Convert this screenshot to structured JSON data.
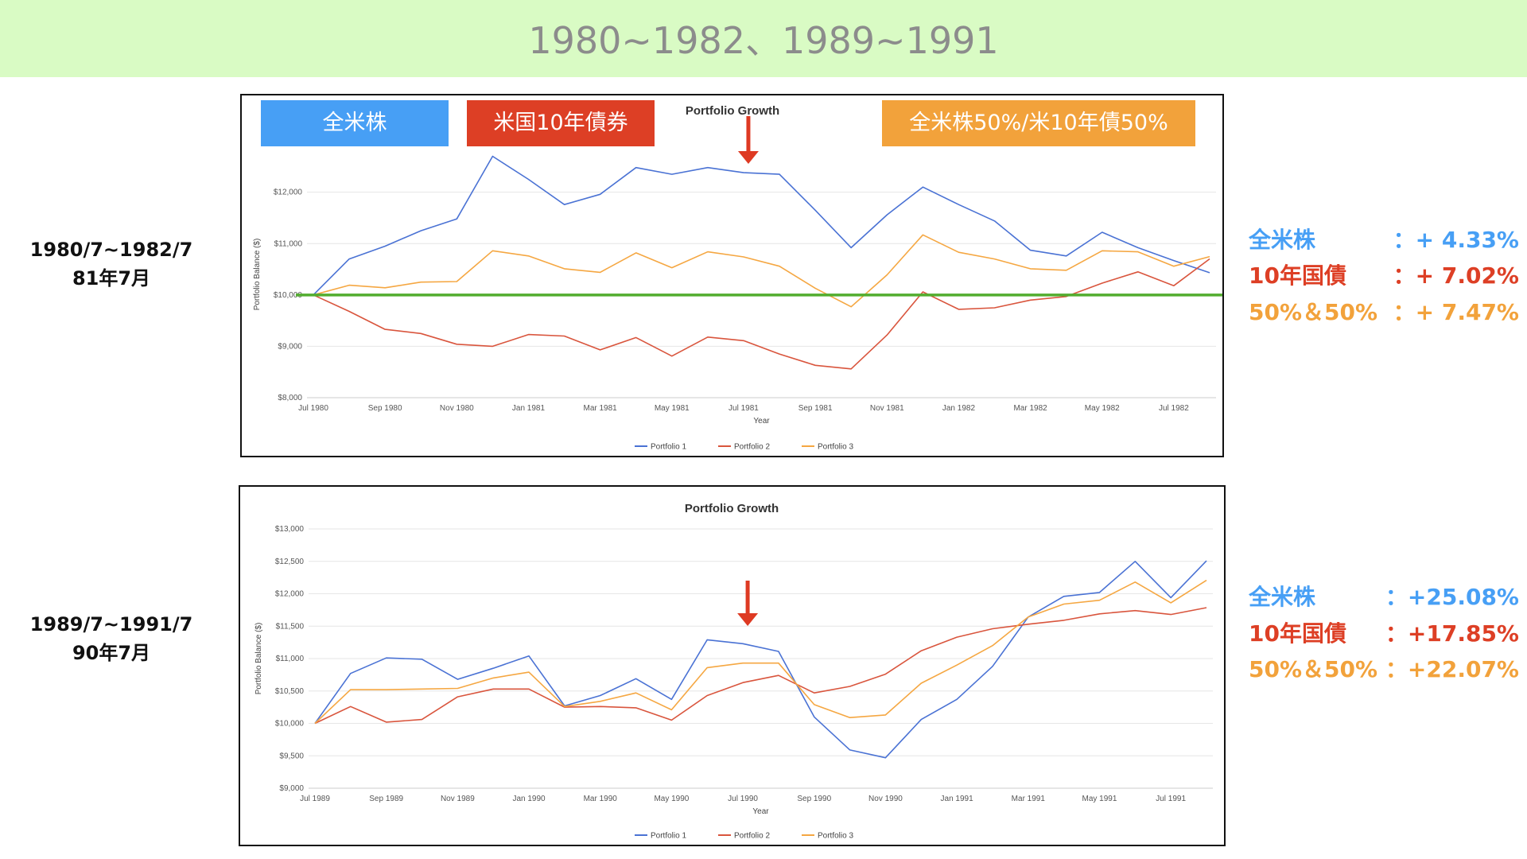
{
  "banner": {
    "title": "1980~1982、1989~1991",
    "color": "#d9fbc4"
  },
  "colors": {
    "portfolio1": "#4a72d4",
    "portfolio2": "#d9553d",
    "portfolio3": "#f5a742",
    "baseline": "#52ad2f",
    "marker": "#de3a23",
    "tag_blue": "#479ff5",
    "tag_red": "#dd3f25",
    "tag_orange": "#f2a23b"
  },
  "tags": {
    "total_us_stock": "全米株",
    "us_10y_bond": "米国10年債券",
    "mix": "全米株50%/米10年債50%"
  },
  "sections": [
    {
      "period": "1980/7~1982/7",
      "event": "81年7月",
      "results": [
        {
          "name": "全米株",
          "value": "：+ 4.33%"
        },
        {
          "name": "10年国債",
          "value": "：+ 7.02%"
        },
        {
          "name": "50%＆50%",
          "value": "：+ 7.47%"
        }
      ]
    },
    {
      "period": "1989/7~1991/7",
      "event": "90年7月",
      "results": [
        {
          "name": "全米株",
          "value": "：+25.08%"
        },
        {
          "name": "10年国債",
          "value": "：+17.85%"
        },
        {
          "name": "50%＆50%",
          "value": "：+22.07%"
        }
      ]
    }
  ],
  "chart_data": [
    {
      "type": "line",
      "title": "Portfolio Growth",
      "xlabel": "Year",
      "ylabel": "Portfolio Balance ($)",
      "ylim": [
        8000,
        12800
      ],
      "yticks": [
        "$8,000",
        "$9,000",
        "$10,000",
        "$11,000",
        "$12,000"
      ],
      "ytick_values": [
        8000,
        9000,
        10000,
        11000,
        12000
      ],
      "x": [
        "Jul 1980",
        "Aug 1980",
        "Sep 1980",
        "Oct 1980",
        "Nov 1980",
        "Dec 1980",
        "Jan 1981",
        "Feb 1981",
        "Mar 1981",
        "Apr 1981",
        "May 1981",
        "Jun 1981",
        "Jul 1981",
        "Aug 1981",
        "Sep 1981",
        "Oct 1981",
        "Nov 1981",
        "Dec 1981",
        "Jan 1982",
        "Feb 1982",
        "Mar 1982",
        "Apr 1982",
        "May 1982",
        "Jun 1982",
        "Jul 1982",
        "Aug 1982"
      ],
      "xticks": [
        "Jul 1980",
        "Sep 1980",
        "Nov 1980",
        "Jan 1981",
        "Mar 1981",
        "May 1981",
        "Jul 1981",
        "Sep 1981",
        "Nov 1981",
        "Jan 1982",
        "Mar 1982",
        "May 1982",
        "Jul 1982"
      ],
      "series": [
        {
          "name": "Portfolio 1",
          "values": [
            10000,
            10700,
            10950,
            11250,
            11480,
            12700,
            12250,
            11760,
            11960,
            12480,
            12350,
            12480,
            12380,
            12350,
            11650,
            10920,
            11560,
            12100,
            11760,
            11440,
            10870,
            10760,
            11220,
            10920,
            10670,
            10433
          ]
        },
        {
          "name": "Portfolio 2",
          "values": [
            10000,
            9680,
            9330,
            9250,
            9040,
            9000,
            9230,
            9200,
            8930,
            9170,
            8810,
            9180,
            9110,
            8850,
            8630,
            8560,
            9220,
            10060,
            9720,
            9750,
            9900,
            9970,
            10230,
            10450,
            10180,
            10702
          ]
        },
        {
          "name": "Portfolio 3",
          "values": [
            10000,
            10190,
            10140,
            10250,
            10260,
            10860,
            10760,
            10510,
            10440,
            10820,
            10530,
            10840,
            10740,
            10560,
            10130,
            9770,
            10390,
            11170,
            10830,
            10700,
            10510,
            10480,
            10860,
            10840,
            10560,
            10747
          ]
        }
      ],
      "baseline": 10000,
      "marker_x": "Jul 1981",
      "legend": "bottom"
    },
    {
      "type": "line",
      "title": "Portfolio Growth",
      "xlabel": "Year",
      "ylabel": "Portfolio Balance ($)",
      "ylim": [
        9000,
        13000
      ],
      "yticks": [
        "$9,000",
        "$9,500",
        "$10,000",
        "$10,500",
        "$11,000",
        "$11,500",
        "$12,000",
        "$12,500",
        "$13,000"
      ],
      "ytick_values": [
        9000,
        9500,
        10000,
        10500,
        11000,
        11500,
        12000,
        12500,
        13000
      ],
      "x": [
        "Jul 1989",
        "Aug 1989",
        "Sep 1989",
        "Oct 1989",
        "Nov 1989",
        "Dec 1989",
        "Jan 1990",
        "Feb 1990",
        "Mar 1990",
        "Apr 1990",
        "May 1990",
        "Jun 1990",
        "Jul 1990",
        "Aug 1990",
        "Sep 1990",
        "Oct 1990",
        "Nov 1990",
        "Dec 1990",
        "Jan 1991",
        "Feb 1991",
        "Mar 1991",
        "Apr 1991",
        "May 1991",
        "Jun 1991",
        "Jul 1991",
        "Aug 1991"
      ],
      "xticks": [
        "Jul 1989",
        "Sep 1989",
        "Nov 1989",
        "Jan 1990",
        "Mar 1990",
        "May 1990",
        "Jul 1990",
        "Sep 1990",
        "Nov 1990",
        "Jan 1991",
        "Mar 1991",
        "May 1991",
        "Jul 1991"
      ],
      "series": [
        {
          "name": "Portfolio 1",
          "values": [
            10000,
            10770,
            11010,
            10990,
            10680,
            10850,
            11040,
            10270,
            10430,
            10690,
            10370,
            11290,
            11230,
            11110,
            10100,
            9590,
            9470,
            10060,
            10370,
            10880,
            11640,
            11960,
            12020,
            12500,
            11940,
            12508
          ]
        },
        {
          "name": "Portfolio 2",
          "values": [
            10000,
            10260,
            10020,
            10060,
            10410,
            10530,
            10530,
            10250,
            10260,
            10240,
            10050,
            10430,
            10630,
            10740,
            10470,
            10570,
            10760,
            11120,
            11330,
            11460,
            11530,
            11590,
            11690,
            11740,
            11680,
            11785
          ]
        },
        {
          "name": "Portfolio 3",
          "values": [
            10000,
            10520,
            10520,
            10530,
            10540,
            10700,
            10790,
            10260,
            10340,
            10470,
            10210,
            10860,
            10930,
            10930,
            10290,
            10090,
            10130,
            10620,
            10900,
            11200,
            11640,
            11840,
            11900,
            12180,
            11860,
            12207
          ]
        }
      ],
      "marker_x": "Jul 1990",
      "legend": "bottom"
    }
  ]
}
